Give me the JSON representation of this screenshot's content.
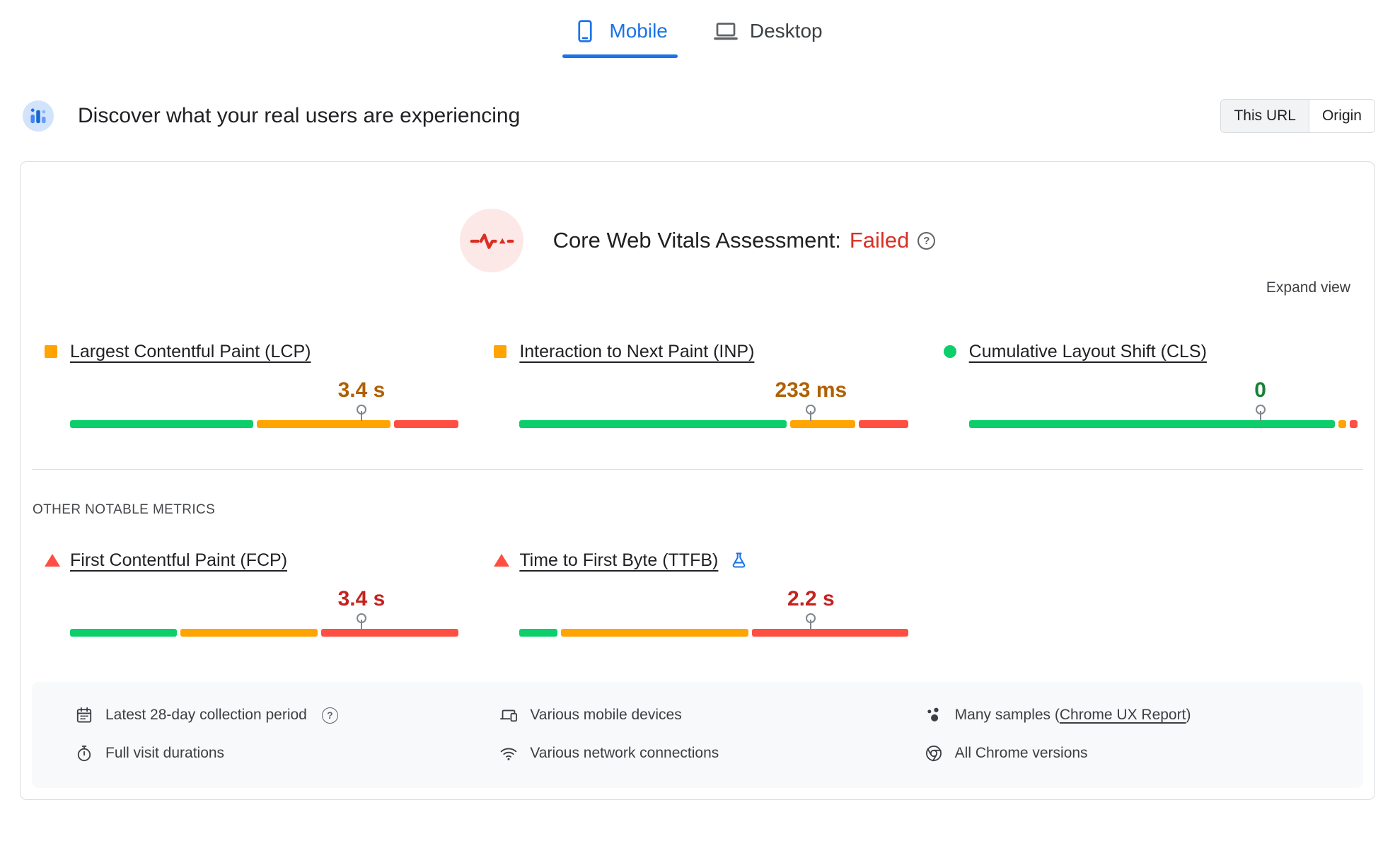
{
  "tabs": [
    {
      "label": "Mobile",
      "active": true
    },
    {
      "label": "Desktop",
      "active": false
    }
  ],
  "header": {
    "title": "Discover what your real users are experiencing",
    "scope_toggle": [
      {
        "label": "This URL",
        "active": true
      },
      {
        "label": "Origin",
        "active": false
      }
    ]
  },
  "assessment": {
    "label": "Core Web Vitals Assessment:",
    "status": "Failed",
    "expand_label": "Expand view"
  },
  "section_labels": {
    "other_metrics": "OTHER NOTABLE METRICS"
  },
  "chart_data": {
    "type": "bar",
    "description": "Field-data distribution bars; segments are percent of page loads rated good / needs improvement / poor. Marker and value sit at the 75th percentile.",
    "core_metrics": [
      {
        "name": "Largest Contentful Paint (LCP)",
        "value": "3.4 s",
        "rating": "needs-improvement",
        "bullet": "square-orange",
        "distribution": {
          "good_pct": 48,
          "needs_improvement_pct": 35,
          "poor_pct": 17
        },
        "p75_marker_pct": 75
      },
      {
        "name": "Interaction to Next Paint (INP)",
        "value": "233 ms",
        "rating": "needs-improvement",
        "bullet": "square-orange",
        "distribution": {
          "good_pct": 70,
          "needs_improvement_pct": 17,
          "poor_pct": 13
        },
        "p75_marker_pct": 75
      },
      {
        "name": "Cumulative Layout Shift (CLS)",
        "value": "0",
        "rating": "good",
        "bullet": "circle-green",
        "distribution": {
          "good_pct": 96,
          "needs_improvement_pct": 2,
          "poor_pct": 2
        },
        "p75_marker_pct": 75
      }
    ],
    "other_metrics": [
      {
        "name": "First Contentful Paint (FCP)",
        "value": "3.4 s",
        "rating": "poor",
        "bullet": "triangle-red",
        "distribution": {
          "good_pct": 28,
          "needs_improvement_pct": 36,
          "poor_pct": 36
        },
        "p75_marker_pct": 75
      },
      {
        "name": "Time to First Byte (TTFB)",
        "value": "2.2 s",
        "rating": "poor",
        "bullet": "triangle-red",
        "experimental": true,
        "distribution": {
          "good_pct": 10,
          "needs_improvement_pct": 49,
          "poor_pct": 41
        },
        "p75_marker_pct": 75
      }
    ]
  },
  "footer": {
    "items": [
      {
        "icon": "calendar-icon",
        "label": "Latest 28-day collection period",
        "has_help": true
      },
      {
        "icon": "stopwatch-icon",
        "label": "Full visit durations"
      },
      {
        "icon": "devices-icon",
        "label": "Various mobile devices"
      },
      {
        "icon": "network-icon",
        "label": "Various network connections"
      },
      {
        "icon": "samples-icon",
        "label_prefix": "Many samples (",
        "link_label": "Chrome UX Report",
        "label_suffix": ")"
      },
      {
        "icon": "chrome-icon",
        "label": "All Chrome versions"
      }
    ]
  },
  "icons": {
    "help": "?"
  },
  "colors": {
    "good": "#0cce6b",
    "needs_improvement": "#ffa400",
    "poor": "#ff4e42",
    "good_text": "#188038",
    "needs_improvement_text": "#b06000",
    "poor_text": "#c5221f",
    "accent_blue": "#1a73e8",
    "failed_red": "#d93025"
  }
}
